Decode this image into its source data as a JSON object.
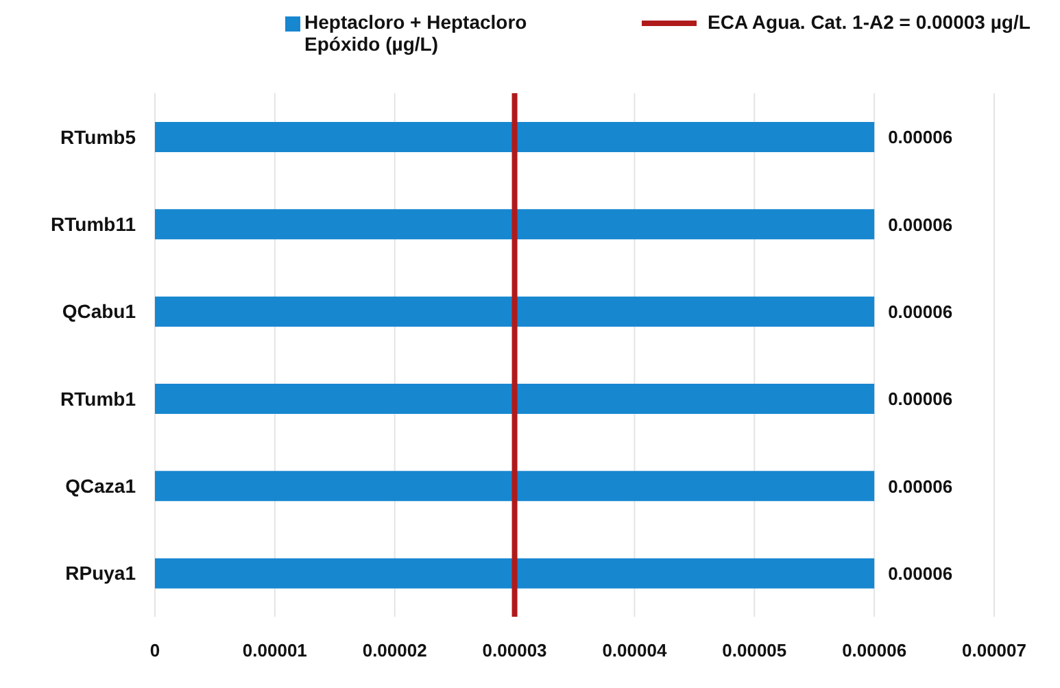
{
  "chart_data": {
    "type": "bar",
    "orientation": "horizontal",
    "categories": [
      "RTumb5",
      "RTumb11",
      "QCabu1",
      "RTumb1",
      "QCaza1",
      "RPuya1"
    ],
    "series": [
      {
        "name": "Heptacloro + Heptacloro Epóxido (µg/L)",
        "color": "#1787d0",
        "values": [
          6e-05,
          6e-05,
          6e-05,
          6e-05,
          6e-05,
          6e-05
        ],
        "value_labels": [
          "0.00006",
          "0.00006",
          "0.00006",
          "0.00006",
          "0.00006",
          "0.00006"
        ]
      }
    ],
    "xlim": [
      0,
      7e-05
    ],
    "xticks": [
      0,
      {
        "value": 1e-05,
        "label": "0.00001"
      },
      {
        "value": 2e-05,
        "label": "0.00002"
      },
      {
        "value": 3e-05,
        "label": "0.00003"
      },
      {
        "value": 4e-05,
        "label": "0.00004"
      },
      {
        "value": 5e-05,
        "label": "0.00005"
      },
      {
        "value": 6e-05,
        "label": "0.00006"
      },
      {
        "value": 7e-05,
        "label": "0.00007"
      }
    ],
    "ref_lines": [
      {
        "axis": "x",
        "value": 3e-05,
        "label": "ECA Agua. Cat. 1-A2 = 0.00003 µg/L",
        "color": "#b01a1a"
      }
    ],
    "grid": "x",
    "legend": "top"
  }
}
